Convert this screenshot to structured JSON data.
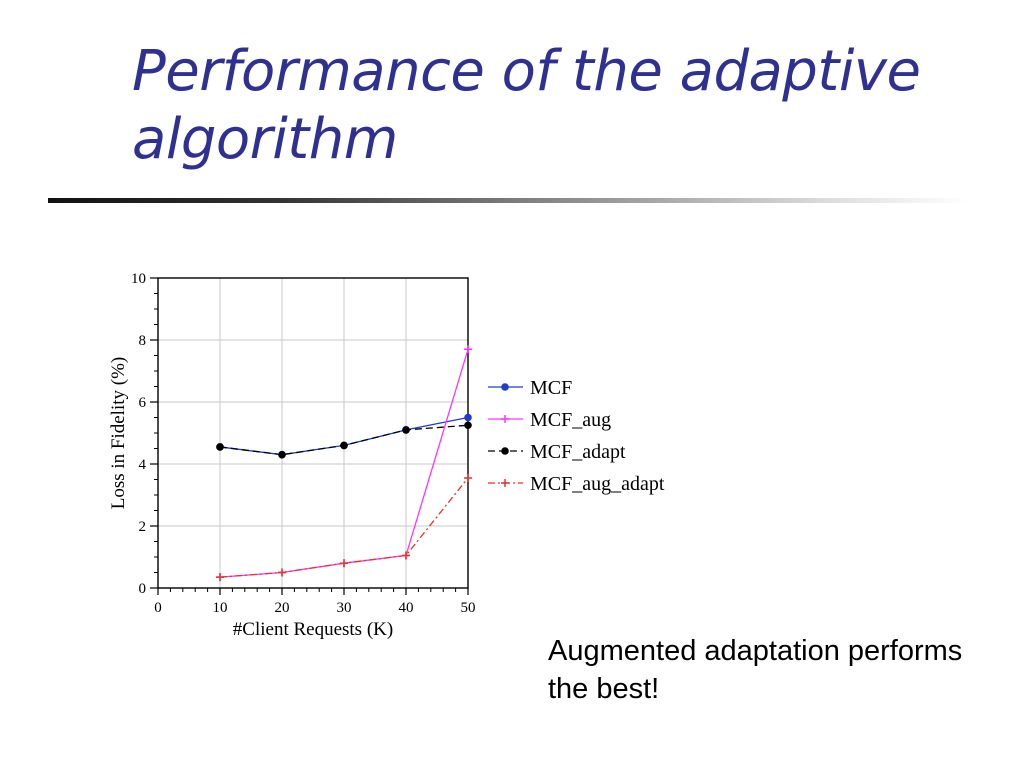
{
  "slide": {
    "title": "Performance of the adaptive algorithm",
    "caption": "Augmented adaptation performs the best!"
  },
  "chart_data": {
    "type": "line",
    "xlabel": "#Client Requests (K)",
    "ylabel": "Loss in Fidelity (%)",
    "xlim": [
      0,
      50
    ],
    "ylim": [
      0,
      10
    ],
    "xticks": [
      0,
      10,
      20,
      30,
      40,
      50
    ],
    "yticks": [
      0,
      2,
      4,
      6,
      8,
      10
    ],
    "grid": true,
    "legend_position": "right",
    "x": [
      10,
      20,
      30,
      40,
      50
    ],
    "series": [
      {
        "name": "MCF",
        "values": [
          4.55,
          4.3,
          4.6,
          5.1,
          5.5
        ],
        "color": "#1f3ccf",
        "dash": "solid",
        "marker": "dot"
      },
      {
        "name": "MCF_aug",
        "values": [
          0.35,
          0.5,
          0.8,
          1.05,
          7.7
        ],
        "color": "#ff33ff",
        "dash": "solid",
        "marker": "plus"
      },
      {
        "name": "MCF_adapt",
        "values": [
          4.55,
          4.3,
          4.6,
          5.1,
          5.25
        ],
        "color": "#000000",
        "dash": "dashed",
        "marker": "dot"
      },
      {
        "name": "MCF_aug_adapt",
        "values": [
          0.35,
          0.5,
          0.8,
          1.05,
          3.55
        ],
        "color": "#e8332a",
        "dash": "dashdot",
        "marker": "plus"
      }
    ]
  }
}
